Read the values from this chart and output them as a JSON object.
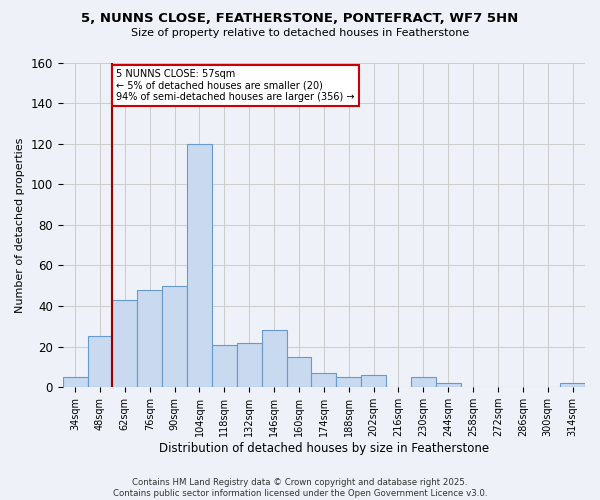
{
  "title1": "5, NUNNS CLOSE, FEATHERSTONE, PONTEFRACT, WF7 5HN",
  "title2": "Size of property relative to detached houses in Featherstone",
  "xlabel": "Distribution of detached houses by size in Featherstone",
  "ylabel": "Number of detached properties",
  "categories": [
    "34sqm",
    "48sqm",
    "62sqm",
    "76sqm",
    "90sqm",
    "104sqm",
    "118sqm",
    "132sqm",
    "146sqm",
    "160sqm",
    "174sqm",
    "188sqm",
    "202sqm",
    "216sqm",
    "230sqm",
    "244sqm",
    "258sqm",
    "272sqm",
    "286sqm",
    "300sqm",
    "314sqm"
  ],
  "values": [
    5,
    25,
    43,
    48,
    50,
    120,
    21,
    22,
    28,
    15,
    7,
    5,
    6,
    0,
    5,
    2,
    0,
    0,
    0,
    0,
    2
  ],
  "bar_color": "#c8d9f0",
  "bar_edge_color": "#6699cc",
  "grid_color": "#cccccc",
  "vline_x": 1.5,
  "vline_color": "#990000",
  "annotation_line1": "5 NUNNS CLOSE: 57sqm",
  "annotation_line2": "← 5% of detached houses are smaller (20)",
  "annotation_line3": "94% of semi-detached houses are larger (356) →",
  "annotation_box_color": "#cc0000",
  "yticks": [
    0,
    20,
    40,
    60,
    80,
    100,
    120,
    140,
    160
  ],
  "ylim": [
    0,
    160
  ],
  "footnote": "Contains HM Land Registry data © Crown copyright and database right 2025.\nContains public sector information licensed under the Open Government Licence v3.0.",
  "background_color": "#eef2f8",
  "title1_fontsize": 9.5,
  "title2_fontsize": 8.0
}
